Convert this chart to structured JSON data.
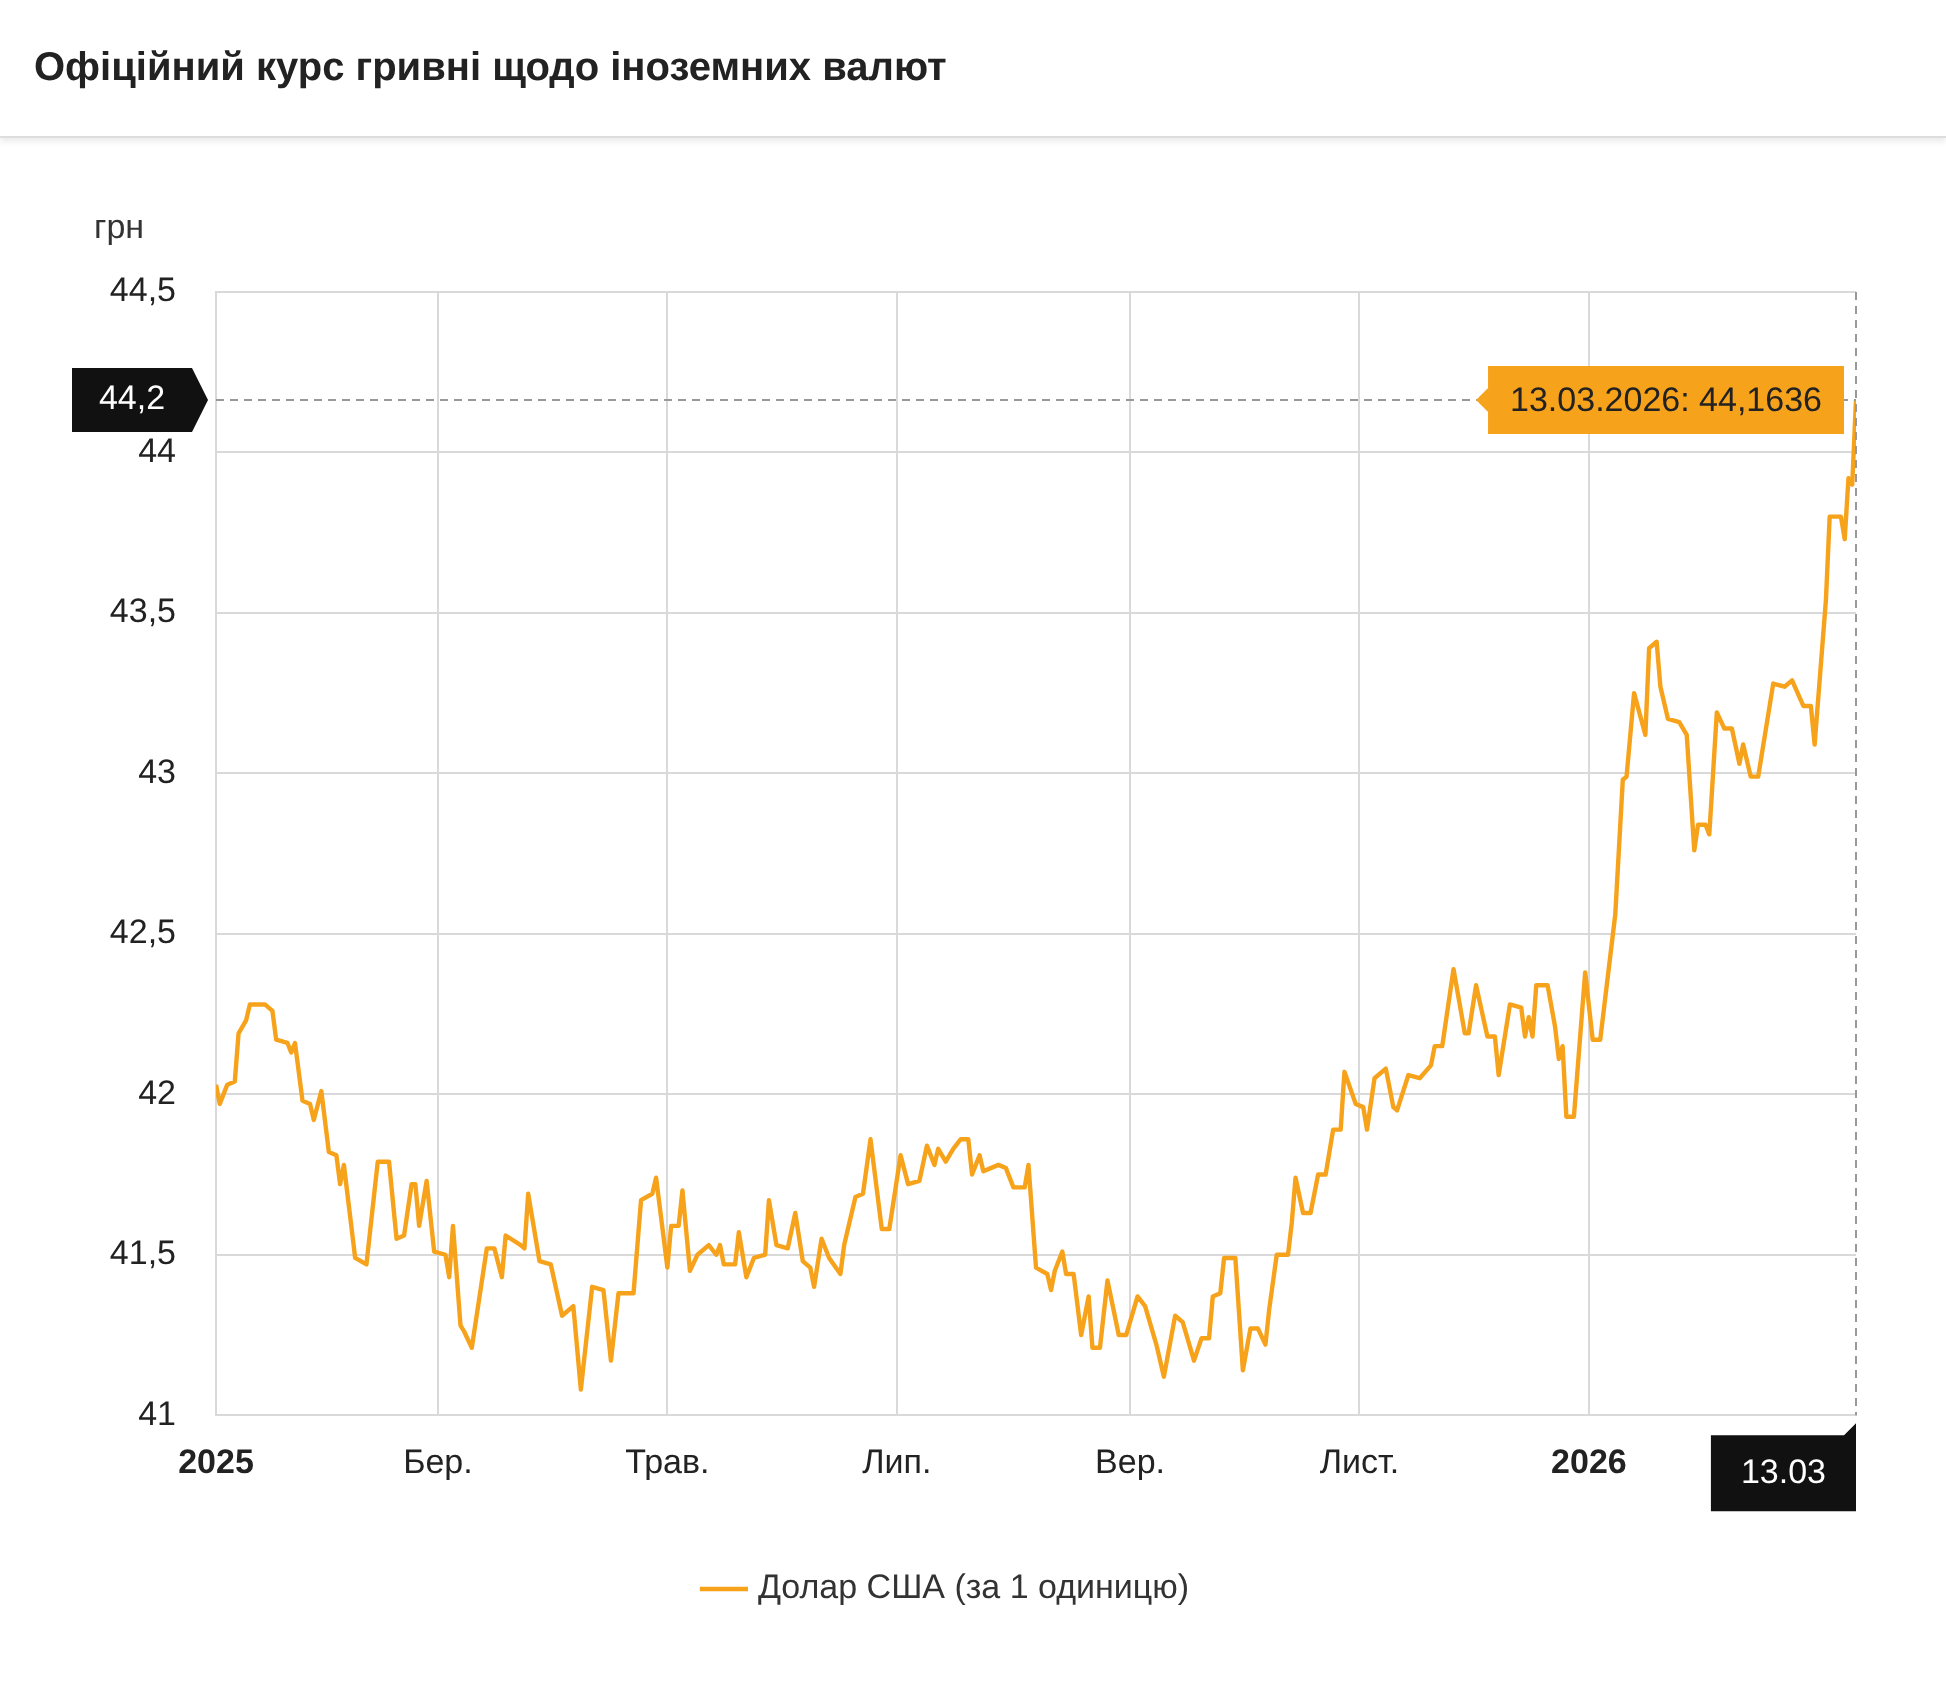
{
  "chart_data": {
    "type": "line",
    "title": "Офіційний курс гривні щодо іноземних валют",
    "ylabel": "грн",
    "xlim": [
      "2025-01-01",
      "2026-03-13"
    ],
    "xticks": [
      {
        "value": "2025-01-01",
        "label": "2025"
      },
      {
        "value": "2025-03-01",
        "label": "Бер."
      },
      {
        "value": "2025-05-01",
        "label": "Трав."
      },
      {
        "value": "2025-07-01",
        "label": "Лип."
      },
      {
        "value": "2025-09-01",
        "label": "Вер."
      },
      {
        "value": "2025-11-01",
        "label": "Лист."
      },
      {
        "value": "2026-01-01",
        "label": "2026"
      }
    ],
    "ylim": [
      41,
      44.5
    ],
    "yticks": [
      {
        "value": 41,
        "label": "41"
      },
      {
        "value": 41.5,
        "label": "41,5"
      },
      {
        "value": 42,
        "label": "42"
      },
      {
        "value": 42.5,
        "label": "42,5"
      },
      {
        "value": 43,
        "label": "43"
      },
      {
        "value": 43.5,
        "label": "43,5"
      },
      {
        "value": 44,
        "label": "44"
      },
      {
        "value": 44.5,
        "label": "44,5"
      }
    ],
    "grid": true,
    "legend": "bottom",
    "marker": "none",
    "line_style": "solid",
    "ref_lines": [
      {
        "axis": "y",
        "value": 44.1636,
        "label": "44,2",
        "color": "#999999",
        "line_style": "dashed"
      },
      {
        "axis": "x",
        "value": "2026-03-13",
        "label": "13.03",
        "color": "#999999",
        "line_style": "dashed"
      }
    ],
    "annotations": [
      {
        "text": "13.03.2026: 44,1636",
        "x": "2026-03-13",
        "y": 44.1636
      }
    ],
    "series": [
      {
        "name": "Долар США (за 1 одиницю)",
        "color": "#f7a21b",
        "x": [
          "2025-01-01",
          "2025-01-02",
          "2025-01-04",
          "2025-01-06",
          "2025-01-07",
          "2025-01-09",
          "2025-01-10",
          "2025-01-14",
          "2025-01-16",
          "2025-01-17",
          "2025-01-20",
          "2025-01-21",
          "2025-01-22",
          "2025-01-24",
          "2025-01-26",
          "2025-01-27",
          "2025-01-29",
          "2025-01-31",
          "2025-02-02",
          "2025-02-03",
          "2025-02-04",
          "2025-02-07",
          "2025-02-10",
          "2025-02-13",
          "2025-02-16",
          "2025-02-18",
          "2025-02-20",
          "2025-02-22",
          "2025-02-23",
          "2025-02-24",
          "2025-02-26",
          "2025-02-28",
          "2025-03-03",
          "2025-03-04",
          "2025-03-05",
          "2025-03-07",
          "2025-03-08",
          "2025-03-10",
          "2025-03-14",
          "2025-03-16",
          "2025-03-18",
          "2025-03-19",
          "2025-03-23",
          "2025-03-24",
          "2025-03-25",
          "2025-03-28",
          "2025-03-31",
          "2025-04-03",
          "2025-04-06",
          "2025-04-08",
          "2025-04-11",
          "2025-04-14",
          "2025-04-16",
          "2025-04-18",
          "2025-04-22",
          "2025-04-24",
          "2025-04-27",
          "2025-04-28",
          "2025-05-01",
          "2025-05-02",
          "2025-05-04",
          "2025-05-05",
          "2025-05-07",
          "2025-05-09",
          "2025-05-12",
          "2025-05-14",
          "2025-05-15",
          "2025-05-16",
          "2025-05-19",
          "2025-05-20",
          "2025-05-22",
          "2025-05-24",
          "2025-05-27",
          "2025-05-28",
          "2025-05-30",
          "2025-06-02",
          "2025-06-04",
          "2025-06-06",
          "2025-06-08",
          "2025-06-09",
          "2025-06-11",
          "2025-06-13",
          "2025-06-16",
          "2025-06-17",
          "2025-06-20",
          "2025-06-22",
          "2025-06-24",
          "2025-06-27",
          "2025-06-29",
          "2025-07-02",
          "2025-07-04",
          "2025-07-07",
          "2025-07-09",
          "2025-07-11",
          "2025-07-12",
          "2025-07-14",
          "2025-07-16",
          "2025-07-18",
          "2025-07-20",
          "2025-07-21",
          "2025-07-23",
          "2025-07-24",
          "2025-07-28",
          "2025-07-30",
          "2025-08-01",
          "2025-08-04",
          "2025-08-05",
          "2025-08-07",
          "2025-08-10",
          "2025-08-11",
          "2025-08-12",
          "2025-08-14",
          "2025-08-15",
          "2025-08-17",
          "2025-08-19",
          "2025-08-21",
          "2025-08-22",
          "2025-08-24",
          "2025-08-26",
          "2025-08-29",
          "2025-08-31",
          "2025-09-03",
          "2025-09-05",
          "2025-09-08",
          "2025-09-10",
          "2025-09-13",
          "2025-09-15",
          "2025-09-18",
          "2025-09-20",
          "2025-09-22",
          "2025-09-23",
          "2025-09-25",
          "2025-09-26",
          "2025-09-29",
          "2025-10-01",
          "2025-10-03",
          "2025-10-05",
          "2025-10-07",
          "2025-10-08",
          "2025-10-10",
          "2025-10-13",
          "2025-10-14",
          "2025-10-15",
          "2025-10-17",
          "2025-10-19",
          "2025-10-21",
          "2025-10-23",
          "2025-10-25",
          "2025-10-27",
          "2025-10-28",
          "2025-10-31",
          "2025-11-02",
          "2025-11-03",
          "2025-11-05",
          "2025-11-08",
          "2025-11-10",
          "2025-11-11",
          "2025-11-14",
          "2025-11-17",
          "2025-11-20",
          "2025-11-21",
          "2025-11-23",
          "2025-11-26",
          "2025-11-29",
          "2025-11-30",
          "2025-12-02",
          "2025-12-05",
          "2025-12-07",
          "2025-12-08",
          "2025-12-11",
          "2025-12-14",
          "2025-12-15",
          "2025-12-16",
          "2025-12-17",
          "2025-12-18",
          "2025-12-21",
          "2025-12-23",
          "2025-12-24",
          "2025-12-25",
          "2025-12-26",
          "2025-12-28",
          "2025-12-31",
          "2026-01-02",
          "2026-01-04",
          "2026-01-08",
          "2026-01-10",
          "2026-01-11",
          "2026-01-13",
          "2026-01-16",
          "2026-01-17",
          "2026-01-19",
          "2026-01-20",
          "2026-01-22",
          "2026-01-25",
          "2026-01-27",
          "2026-01-29",
          "2026-01-30",
          "2026-02-01",
          "2026-02-02",
          "2026-02-04",
          "2026-02-06",
          "2026-02-08",
          "2026-02-10",
          "2026-02-11",
          "2026-02-13",
          "2026-02-15",
          "2026-02-19",
          "2026-02-22",
          "2026-02-24",
          "2026-02-27",
          "2026-03-01",
          "2026-03-02",
          "2026-03-05",
          "2026-03-06",
          "2026-03-09",
          "2026-03-10",
          "2026-03-11",
          "2026-03-12",
          "2026-03-13"
        ],
        "values": [
          42.03,
          41.97,
          42.03,
          42.04,
          42.19,
          42.23,
          42.28,
          42.28,
          42.26,
          42.17,
          42.16,
          42.13,
          42.16,
          41.98,
          41.97,
          41.92,
          42.01,
          41.82,
          41.81,
          41.72,
          41.78,
          41.49,
          41.47,
          41.79,
          41.79,
          41.55,
          41.56,
          41.72,
          41.72,
          41.59,
          41.73,
          41.51,
          41.5,
          41.43,
          41.59,
          41.28,
          41.26,
          41.21,
          41.52,
          41.52,
          41.43,
          41.56,
          41.53,
          41.52,
          41.69,
          41.48,
          41.47,
          41.31,
          41.34,
          41.08,
          41.4,
          41.39,
          41.17,
          41.38,
          41.38,
          41.67,
          41.69,
          41.74,
          41.46,
          41.59,
          41.59,
          41.7,
          41.45,
          41.5,
          41.53,
          41.5,
          41.53,
          41.47,
          41.47,
          41.57,
          41.43,
          41.49,
          41.5,
          41.67,
          41.53,
          41.52,
          41.63,
          41.48,
          41.46,
          41.4,
          41.55,
          41.49,
          41.44,
          41.53,
          41.68,
          41.69,
          41.86,
          41.58,
          41.58,
          41.81,
          41.72,
          41.73,
          41.84,
          41.78,
          41.83,
          41.79,
          41.83,
          41.86,
          41.86,
          41.75,
          41.81,
          41.76,
          41.78,
          41.77,
          41.71,
          41.71,
          41.78,
          41.46,
          41.44,
          41.39,
          41.45,
          41.51,
          41.44,
          41.44,
          41.25,
          41.37,
          41.21,
          41.21,
          41.42,
          41.25,
          41.25,
          41.37,
          41.34,
          41.22,
          41.12,
          41.31,
          41.29,
          41.17,
          41.24,
          41.24,
          41.37,
          41.38,
          41.49,
          41.49,
          41.14,
          41.27,
          41.27,
          41.22,
          41.33,
          41.5,
          41.5,
          41.6,
          41.74,
          41.63,
          41.63,
          41.75,
          41.75,
          41.89,
          41.89,
          42.07,
          41.97,
          41.96,
          41.89,
          42.05,
          42.08,
          41.96,
          41.95,
          42.06,
          42.05,
          42.09,
          42.15,
          42.15,
          42.39,
          42.19,
          42.19,
          42.34,
          42.18,
          42.18,
          42.06,
          42.28,
          42.27,
          42.18,
          42.24,
          42.18,
          42.34,
          42.34,
          42.21,
          42.11,
          42.15,
          41.93,
          41.93,
          42.38,
          42.17,
          42.17,
          42.56,
          42.98,
          42.99,
          43.25,
          43.12,
          43.39,
          43.41,
          43.27,
          43.17,
          43.16,
          43.12,
          42.76,
          42.84,
          42.84,
          42.81,
          43.19,
          43.14,
          43.14,
          43.03,
          43.09,
          42.99,
          42.99,
          43.28,
          43.27,
          43.29,
          43.21,
          43.21,
          43.09,
          43.54,
          43.8,
          43.8,
          43.73,
          43.92,
          43.9,
          44.1636
        ]
      }
    ]
  }
}
